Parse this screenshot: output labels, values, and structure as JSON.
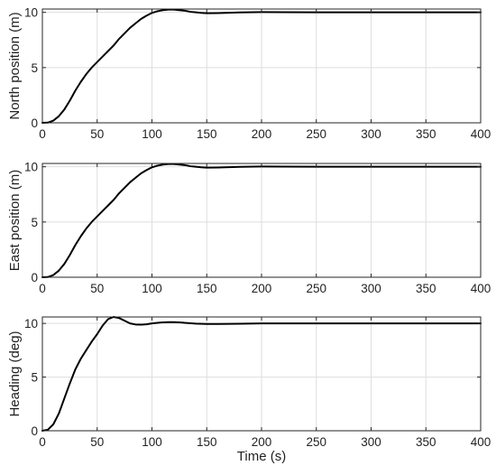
{
  "chart_data": [
    {
      "type": "line",
      "xlabel": "",
      "ylabel": "North position (m)",
      "xlim": [
        0,
        400
      ],
      "ylim": [
        0,
        10.3
      ],
      "xticks": [
        0,
        50,
        100,
        150,
        200,
        250,
        300,
        350,
        400
      ],
      "yticks": [
        0,
        5,
        10
      ],
      "grid": true,
      "series": [
        {
          "color": "#000000",
          "x": [
            0,
            5,
            10,
            15,
            20,
            25,
            30,
            35,
            40,
            45,
            50,
            55,
            60,
            65,
            70,
            75,
            80,
            85,
            90,
            95,
            100,
            105,
            110,
            115,
            120,
            125,
            130,
            135,
            140,
            145,
            150,
            160,
            170,
            180,
            200,
            220,
            250,
            300,
            350,
            400
          ],
          "y": [
            0,
            0.02,
            0.2,
            0.6,
            1.2,
            2.0,
            2.9,
            3.7,
            4.4,
            5.0,
            5.5,
            6.0,
            6.5,
            7.0,
            7.6,
            8.1,
            8.6,
            9.0,
            9.4,
            9.7,
            9.95,
            10.1,
            10.2,
            10.25,
            10.25,
            10.2,
            10.15,
            10.05,
            10.0,
            9.95,
            9.92,
            9.93,
            9.96,
            9.99,
            10.02,
            10.01,
            10.0,
            10.0,
            10.0,
            10.0
          ]
        }
      ]
    },
    {
      "type": "line",
      "xlabel": "",
      "ylabel": "East position (m)",
      "xlim": [
        0,
        400
      ],
      "ylim": [
        0,
        10.3
      ],
      "xticks": [
        0,
        50,
        100,
        150,
        200,
        250,
        300,
        350,
        400
      ],
      "yticks": [
        0,
        5,
        10
      ],
      "grid": true,
      "series": [
        {
          "color": "#000000",
          "x": [
            0,
            5,
            10,
            15,
            20,
            25,
            30,
            35,
            40,
            45,
            50,
            55,
            60,
            65,
            70,
            75,
            80,
            85,
            90,
            95,
            100,
            105,
            110,
            115,
            120,
            125,
            130,
            135,
            140,
            145,
            150,
            160,
            170,
            180,
            200,
            220,
            250,
            300,
            350,
            400
          ],
          "y": [
            0,
            0.02,
            0.2,
            0.6,
            1.2,
            2.0,
            2.9,
            3.7,
            4.4,
            5.0,
            5.5,
            6.0,
            6.5,
            7.0,
            7.6,
            8.1,
            8.6,
            9.0,
            9.4,
            9.7,
            9.95,
            10.1,
            10.2,
            10.25,
            10.25,
            10.2,
            10.15,
            10.05,
            10.0,
            9.95,
            9.92,
            9.93,
            9.96,
            9.99,
            10.02,
            10.01,
            10.0,
            10.0,
            10.0,
            10.0
          ]
        }
      ]
    },
    {
      "type": "line",
      "xlabel": "Time (s)",
      "ylabel": "Heading (deg)",
      "xlim": [
        0,
        400
      ],
      "ylim": [
        0,
        10.6
      ],
      "xticks": [
        0,
        50,
        100,
        150,
        200,
        250,
        300,
        350,
        400
      ],
      "yticks": [
        0,
        5,
        10
      ],
      "grid": true,
      "series": [
        {
          "color": "#000000",
          "x": [
            0,
            5,
            10,
            15,
            20,
            25,
            30,
            35,
            40,
            45,
            50,
            55,
            60,
            65,
            70,
            75,
            80,
            85,
            90,
            95,
            100,
            105,
            110,
            115,
            120,
            125,
            130,
            140,
            150,
            160,
            180,
            200,
            250,
            300,
            350,
            400
          ],
          "y": [
            0,
            0.1,
            0.6,
            1.6,
            3.0,
            4.4,
            5.7,
            6.7,
            7.5,
            8.3,
            9.0,
            9.8,
            10.4,
            10.6,
            10.5,
            10.25,
            10.0,
            9.9,
            9.88,
            9.92,
            10.0,
            10.05,
            10.1,
            10.12,
            10.12,
            10.1,
            10.05,
            9.98,
            9.95,
            9.95,
            9.97,
            10.0,
            10.0,
            10.0,
            10.0,
            10.0
          ]
        }
      ]
    }
  ]
}
